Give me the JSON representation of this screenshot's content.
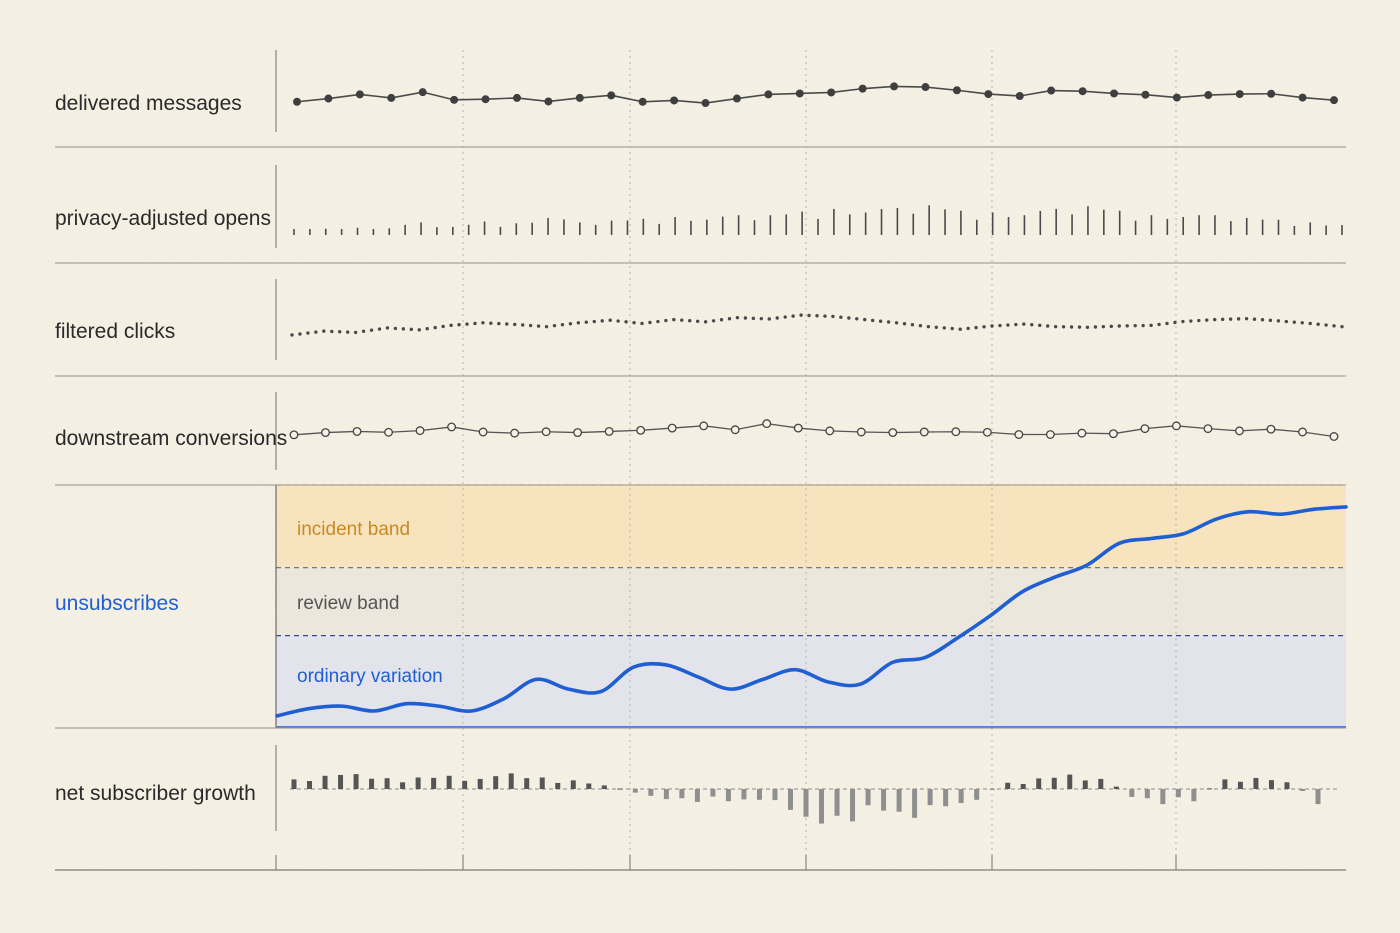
{
  "chart_data": {
    "type": "line",
    "layout": "stacked small multiples sharing one x axis",
    "x_count": 34,
    "x_ticks": [
      "",
      "",
      "",
      "",
      "",
      ""
    ],
    "grid": "dotted vertical lines at x tick positions",
    "colors": {
      "background": "#f6f1e5",
      "ink": "#444444",
      "highlight": "#1f5fd1",
      "incident_band": "#f7e4bf",
      "review_band": "#ece7dc",
      "ordinary_band": "#e3e4eb",
      "incident_text": "#c98a26",
      "review_text": "#555555"
    },
    "rows": [
      {
        "label": "delivered messages",
        "mark": "line with filled dots",
        "values": [
          0.32,
          0.42,
          0.55,
          0.44,
          0.62,
          0.38,
          0.4,
          0.44,
          0.33,
          0.44,
          0.52,
          0.32,
          0.36,
          0.28,
          0.42,
          0.55,
          0.58,
          0.61,
          0.73,
          0.8,
          0.78,
          0.68,
          0.56,
          0.5,
          0.67,
          0.65,
          0.58,
          0.54,
          0.45,
          0.53,
          0.56,
          0.57,
          0.45,
          0.37
        ]
      },
      {
        "label": "privacy-adjusted opens",
        "mark": "vertical spikes",
        "values": [
          0.1,
          0.14,
          0.16,
          0.15,
          0.28,
          0.18,
          0.3,
          0.26,
          0.38,
          0.28,
          0.32,
          0.36,
          0.4,
          0.34,
          0.44,
          0.44,
          0.52,
          0.58,
          0.5,
          0.6,
          0.66,
          0.54,
          0.5,
          0.44,
          0.58,
          0.64,
          0.54,
          0.44,
          0.4,
          0.44,
          0.38,
          0.34,
          0.28,
          0.22
        ]
      },
      {
        "label": "filtered clicks",
        "mark": "dotted line",
        "values": [
          0.22,
          0.34,
          0.3,
          0.44,
          0.38,
          0.52,
          0.6,
          0.55,
          0.48,
          0.6,
          0.68,
          0.58,
          0.7,
          0.63,
          0.76,
          0.72,
          0.84,
          0.8,
          0.7,
          0.6,
          0.48,
          0.4,
          0.5,
          0.56,
          0.48,
          0.46,
          0.5,
          0.52,
          0.64,
          0.7,
          0.73,
          0.66,
          0.58,
          0.48
        ]
      },
      {
        "label": "downstream conversions",
        "mark": "line with open circles",
        "values": [
          0.4,
          0.48,
          0.52,
          0.49,
          0.55,
          0.68,
          0.5,
          0.46,
          0.51,
          0.48,
          0.52,
          0.56,
          0.64,
          0.72,
          0.58,
          0.8,
          0.64,
          0.54,
          0.5,
          0.48,
          0.5,
          0.51,
          0.49,
          0.41,
          0.41,
          0.46,
          0.44,
          0.62,
          0.72,
          0.62,
          0.54,
          0.6,
          0.5,
          0.34
        ]
      },
      {
        "label": "unsubscribes",
        "mark": "smooth line over threshold bands",
        "highlighted": true,
        "bands": [
          {
            "name": "ordinary variation",
            "from": 0,
            "to": 0.38
          },
          {
            "name": "review band",
            "from": 0.38,
            "to": 0.66
          },
          {
            "name": "incident band",
            "from": 0.66,
            "to": 1
          }
        ],
        "values": [
          0.05,
          0.08,
          0.09,
          0.07,
          0.1,
          0.09,
          0.07,
          0.12,
          0.2,
          0.16,
          0.15,
          0.25,
          0.26,
          0.21,
          0.16,
          0.2,
          0.24,
          0.19,
          0.18,
          0.27,
          0.29,
          0.37,
          0.46,
          0.56,
          0.62,
          0.67,
          0.76,
          0.78,
          0.8,
          0.86,
          0.89,
          0.88,
          0.9,
          0.91
        ]
      },
      {
        "label": "net subscriber growth",
        "mark": "diverging bars around zero baseline",
        "values": [
          0.4,
          0.55,
          0.62,
          0.45,
          0.48,
          0.55,
          0.42,
          0.65,
          0.48,
          0.36,
          0.15,
          -0.1,
          -0.28,
          -0.36,
          -0.34,
          -0.3,
          -0.58,
          -0.96,
          -0.9,
          -0.6,
          -0.8,
          -0.48,
          -0.3,
          0.26,
          0.44,
          0.6,
          0.42,
          -0.22,
          -0.42,
          -0.34,
          0.4,
          0.46,
          0.28,
          -0.42
        ]
      }
    ]
  }
}
